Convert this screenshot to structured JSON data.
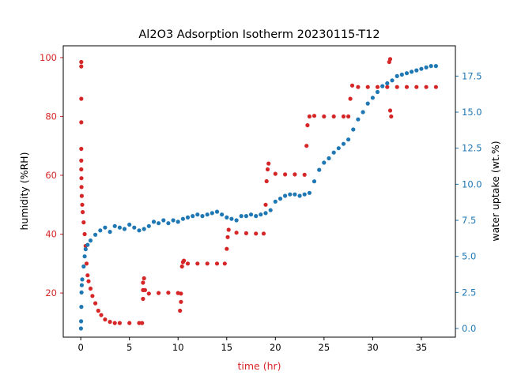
{
  "chart_data": {
    "type": "scatter",
    "title": "Al2O3 Adsorption Isotherm 20230115-T12",
    "xlabel": "time (hr)",
    "ylabel_left": "humidity (%RH)",
    "ylabel_right": "water uptake (wt.%)",
    "xlim": [
      -1.8,
      38.5
    ],
    "ylim_left": [
      5,
      104
    ],
    "ylim_right": [
      -0.6,
      19.6
    ],
    "x_ticks": [
      0,
      5,
      10,
      15,
      20,
      25,
      30,
      35
    ],
    "y_left_ticks": [
      20,
      40,
      60,
      80,
      100
    ],
    "y_right_ticks": [
      0.0,
      2.5,
      5.0,
      7.5,
      10.0,
      12.5,
      15.0,
      17.5
    ],
    "grid": false,
    "colors": {
      "humidity": "#d62728",
      "uptake": "#1f77b4",
      "axes": "#000000"
    },
    "series": [
      {
        "axis": "left",
        "color": "#d62728",
        "points": [
          [
            0.05,
            98.5
          ],
          [
            0.05,
            97.0
          ],
          [
            0.05,
            86.0
          ],
          [
            0.05,
            78.0
          ],
          [
            0.05,
            69.0
          ],
          [
            0.05,
            65.0
          ],
          [
            0.05,
            62.0
          ],
          [
            0.07,
            59.0
          ],
          [
            0.08,
            56.0
          ],
          [
            0.1,
            53.0
          ],
          [
            0.15,
            50.0
          ],
          [
            0.2,
            47.5
          ],
          [
            0.3,
            44.0
          ],
          [
            0.4,
            40.0
          ],
          [
            0.5,
            36.0
          ],
          [
            0.6,
            30.0
          ],
          [
            0.7,
            26.0
          ],
          [
            0.8,
            24.0
          ],
          [
            1.0,
            21.5
          ],
          [
            1.2,
            19.0
          ],
          [
            1.5,
            16.5
          ],
          [
            1.8,
            14.0
          ],
          [
            2.1,
            12.5
          ],
          [
            2.5,
            11.0
          ],
          [
            3.0,
            10.2
          ],
          [
            3.5,
            9.8
          ],
          [
            4.0,
            9.8
          ],
          [
            5.0,
            9.8
          ],
          [
            6.0,
            9.8
          ],
          [
            6.3,
            9.8
          ],
          [
            6.4,
            18.0
          ],
          [
            6.4,
            21.0
          ],
          [
            6.4,
            23.5
          ],
          [
            6.5,
            25.0
          ],
          [
            6.6,
            21.0
          ],
          [
            7.0,
            19.8
          ],
          [
            8.0,
            20.0
          ],
          [
            9.0,
            20.1
          ],
          [
            10.0,
            20.0
          ],
          [
            10.3,
            19.8
          ],
          [
            10.2,
            14.0
          ],
          [
            10.3,
            17.0
          ],
          [
            10.4,
            29.0
          ],
          [
            10.5,
            30.5
          ],
          [
            10.6,
            31.0
          ],
          [
            11.0,
            30.0
          ],
          [
            12.0,
            30.0
          ],
          [
            13.0,
            30.0
          ],
          [
            14.0,
            30.0
          ],
          [
            14.8,
            30.0
          ],
          [
            15.0,
            35.0
          ],
          [
            15.1,
            39.0
          ],
          [
            15.2,
            41.5
          ],
          [
            16.0,
            40.5
          ],
          [
            17.0,
            40.3
          ],
          [
            18.0,
            40.2
          ],
          [
            18.8,
            40.2
          ],
          [
            19.0,
            50.0
          ],
          [
            19.1,
            58.0
          ],
          [
            19.2,
            62.0
          ],
          [
            19.3,
            64.0
          ],
          [
            20.0,
            60.5
          ],
          [
            21.0,
            60.3
          ],
          [
            22.0,
            60.3
          ],
          [
            23.0,
            60.2
          ],
          [
            23.2,
            70.0
          ],
          [
            23.3,
            77.0
          ],
          [
            23.5,
            80.0
          ],
          [
            24.0,
            80.2
          ],
          [
            25.0,
            80.0
          ],
          [
            26.0,
            80.0
          ],
          [
            27.0,
            80.0
          ],
          [
            27.5,
            80.0
          ],
          [
            27.7,
            86.0
          ],
          [
            27.9,
            90.5
          ],
          [
            28.5,
            90.0
          ],
          [
            29.5,
            90.0
          ],
          [
            30.5,
            90.0
          ],
          [
            31.5,
            90.0
          ],
          [
            31.7,
            98.5
          ],
          [
            31.8,
            99.5
          ],
          [
            31.8,
            82.0
          ],
          [
            31.9,
            80.0
          ],
          [
            32.5,
            90.0
          ],
          [
            33.5,
            90.0
          ],
          [
            34.5,
            90.0
          ],
          [
            35.5,
            90.0
          ],
          [
            36.5,
            90.0
          ]
        ]
      },
      {
        "axis": "right",
        "color": "#1f77b4",
        "points": [
          [
            0.02,
            0.0
          ],
          [
            0.04,
            0.5
          ],
          [
            0.06,
            1.5
          ],
          [
            0.08,
            2.5
          ],
          [
            0.1,
            3.0
          ],
          [
            0.15,
            3.4
          ],
          [
            0.3,
            4.3
          ],
          [
            0.4,
            5.0
          ],
          [
            0.5,
            5.5
          ],
          [
            0.7,
            5.8
          ],
          [
            1.0,
            6.1
          ],
          [
            1.5,
            6.5
          ],
          [
            2.0,
            6.8
          ],
          [
            2.5,
            7.0
          ],
          [
            3.0,
            6.7
          ],
          [
            3.5,
            7.1
          ],
          [
            4.0,
            7.0
          ],
          [
            4.5,
            6.9
          ],
          [
            5.0,
            7.2
          ],
          [
            5.5,
            7.0
          ],
          [
            6.0,
            6.8
          ],
          [
            6.5,
            6.9
          ],
          [
            7.0,
            7.1
          ],
          [
            7.5,
            7.4
          ],
          [
            8.0,
            7.3
          ],
          [
            8.5,
            7.5
          ],
          [
            9.0,
            7.3
          ],
          [
            9.5,
            7.5
          ],
          [
            10.0,
            7.4
          ],
          [
            10.5,
            7.6
          ],
          [
            11.0,
            7.7
          ],
          [
            11.5,
            7.8
          ],
          [
            12.0,
            7.9
          ],
          [
            12.5,
            7.8
          ],
          [
            13.0,
            7.9
          ],
          [
            13.5,
            8.0
          ],
          [
            14.0,
            8.1
          ],
          [
            14.5,
            7.9
          ],
          [
            15.0,
            7.7
          ],
          [
            15.5,
            7.6
          ],
          [
            16.0,
            7.5
          ],
          [
            16.5,
            7.8
          ],
          [
            17.0,
            7.8
          ],
          [
            17.5,
            7.9
          ],
          [
            18.0,
            7.8
          ],
          [
            18.5,
            7.9
          ],
          [
            19.0,
            8.0
          ],
          [
            19.5,
            8.2
          ],
          [
            20.0,
            8.8
          ],
          [
            20.5,
            9.0
          ],
          [
            21.0,
            9.2
          ],
          [
            21.5,
            9.3
          ],
          [
            22.0,
            9.3
          ],
          [
            22.5,
            9.2
          ],
          [
            23.0,
            9.3
          ],
          [
            23.5,
            9.4
          ],
          [
            24.0,
            10.2
          ],
          [
            24.5,
            11.0
          ],
          [
            25.0,
            11.5
          ],
          [
            25.5,
            11.8
          ],
          [
            26.0,
            12.2
          ],
          [
            26.5,
            12.5
          ],
          [
            27.0,
            12.8
          ],
          [
            27.5,
            13.1
          ],
          [
            28.0,
            13.8
          ],
          [
            28.5,
            14.5
          ],
          [
            29.0,
            15.0
          ],
          [
            29.5,
            15.6
          ],
          [
            30.0,
            16.0
          ],
          [
            30.5,
            16.4
          ],
          [
            31.0,
            16.8
          ],
          [
            31.5,
            17.0
          ],
          [
            32.0,
            17.2
          ],
          [
            32.5,
            17.5
          ],
          [
            33.0,
            17.6
          ],
          [
            33.5,
            17.7
          ],
          [
            34.0,
            17.8
          ],
          [
            34.5,
            17.9
          ],
          [
            35.0,
            18.0
          ],
          [
            35.5,
            18.1
          ],
          [
            36.0,
            18.2
          ],
          [
            36.5,
            18.2
          ]
        ]
      }
    ]
  }
}
